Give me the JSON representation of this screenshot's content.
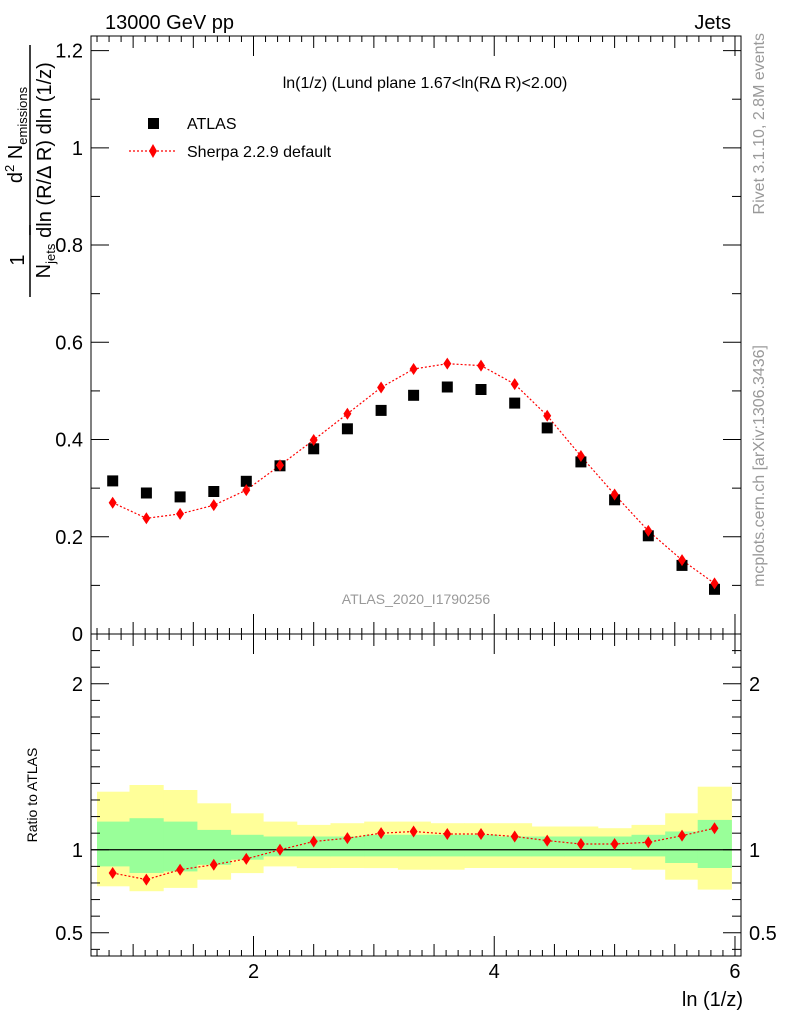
{
  "header": {
    "left": "13000 GeV pp",
    "right": "Jets"
  },
  "side_labels": {
    "rivet": "Rivet 3.1.10,  2.8M events",
    "mcplots": "mcplots.cern.ch [arXiv:1306.3436]"
  },
  "chart_data": [
    {
      "type": "scatter",
      "panel": "main",
      "title": "ln(1/z) (Lund plane 1.67<ln(RΔ R)<2.00)",
      "ylabel": "1/N_jets d²N_emissions / dln(R/Δ R) dln(1/z)",
      "watermark": "ATLAS_2020_I1790256",
      "xlim": [
        0.65,
        6.05
      ],
      "ylim": [
        0,
        1.23
      ],
      "yticks": [
        0,
        0.2,
        0.4,
        0.6,
        0.8,
        1,
        1.2
      ],
      "ytick_labels": [
        "0",
        "0.2",
        "0.4",
        "0.6",
        "0.8",
        "1",
        "1.2"
      ],
      "legend_position": "top-left",
      "series": [
        {
          "name": "ATLAS",
          "marker": "square",
          "color": "#000000",
          "x": [
            0.83,
            1.11,
            1.39,
            1.67,
            1.94,
            2.22,
            2.5,
            2.78,
            3.06,
            3.33,
            3.61,
            3.89,
            4.17,
            4.44,
            4.72,
            5.0,
            5.28,
            5.56,
            5.83
          ],
          "y": [
            0.315,
            0.29,
            0.282,
            0.293,
            0.314,
            0.346,
            0.381,
            0.422,
            0.46,
            0.491,
            0.508,
            0.503,
            0.475,
            0.424,
            0.354,
            0.276,
            0.202,
            0.141,
            0.092
          ]
        },
        {
          "name": "Sherpa 2.2.9 default",
          "marker": "diamond",
          "line": "dotted",
          "color": "#ff0000",
          "x": [
            0.83,
            1.11,
            1.39,
            1.67,
            1.94,
            2.22,
            2.5,
            2.78,
            3.06,
            3.33,
            3.61,
            3.89,
            4.17,
            4.44,
            4.72,
            5.0,
            5.28,
            5.56,
            5.83
          ],
          "y": [
            0.27,
            0.238,
            0.247,
            0.265,
            0.296,
            0.347,
            0.399,
            0.453,
            0.507,
            0.545,
            0.556,
            0.552,
            0.514,
            0.449,
            0.366,
            0.287,
            0.212,
            0.152,
            0.104
          ]
        }
      ]
    },
    {
      "type": "scatter",
      "panel": "ratio",
      "ylabel": "Ratio to ATLAS",
      "xlabel": "ln (1/z)",
      "xlim": [
        0.65,
        6.05
      ],
      "ylim": [
        0.36,
        2.3
      ],
      "xticks": [
        2,
        4,
        6
      ],
      "xtick_labels": [
        "2",
        "4",
        "6"
      ],
      "yticks": [
        0.5,
        1,
        2
      ],
      "ytick_labels": [
        "0.5",
        "1",
        "2"
      ],
      "bin_edges": [
        0.7,
        0.97,
        1.25,
        1.53,
        1.81,
        2.08,
        2.36,
        2.64,
        2.92,
        3.2,
        3.47,
        3.75,
        4.03,
        4.31,
        4.58,
        4.86,
        5.14,
        5.42,
        5.69,
        5.97
      ],
      "bands": [
        {
          "name": "total uncertainty",
          "color": "#ffff99",
          "lo": [
            0.78,
            0.75,
            0.77,
            0.82,
            0.86,
            0.9,
            0.89,
            0.89,
            0.89,
            0.88,
            0.88,
            0.89,
            0.89,
            0.89,
            0.89,
            0.89,
            0.88,
            0.82,
            0.76
          ],
          "hi": [
            1.35,
            1.39,
            1.36,
            1.28,
            1.22,
            1.17,
            1.15,
            1.16,
            1.17,
            1.17,
            1.16,
            1.16,
            1.16,
            1.14,
            1.14,
            1.13,
            1.15,
            1.22,
            1.38
          ]
        },
        {
          "name": "statistical uncertainty",
          "color": "#99ff99",
          "lo": [
            0.9,
            0.86,
            0.87,
            0.91,
            0.94,
            0.96,
            0.96,
            0.96,
            0.96,
            0.96,
            0.96,
            0.96,
            0.96,
            0.96,
            0.96,
            0.96,
            0.96,
            0.92,
            0.89
          ],
          "hi": [
            1.17,
            1.19,
            1.17,
            1.12,
            1.09,
            1.08,
            1.08,
            1.08,
            1.09,
            1.09,
            1.09,
            1.09,
            1.08,
            1.08,
            1.08,
            1.08,
            1.09,
            1.11,
            1.18
          ]
        }
      ],
      "reference": 1,
      "series": [
        {
          "name": "Sherpa 2.2.9 default",
          "marker": "diamond",
          "line": "dotted",
          "color": "#ff0000",
          "x": [
            0.83,
            1.11,
            1.39,
            1.67,
            1.94,
            2.22,
            2.5,
            2.78,
            3.06,
            3.33,
            3.61,
            3.89,
            4.17,
            4.44,
            4.72,
            5.0,
            5.28,
            5.56,
            5.83
          ],
          "y": [
            0.86,
            0.82,
            0.88,
            0.91,
            0.945,
            1.0,
            1.05,
            1.07,
            1.1,
            1.11,
            1.095,
            1.095,
            1.08,
            1.055,
            1.035,
            1.035,
            1.045,
            1.085,
            1.13
          ]
        }
      ]
    }
  ]
}
